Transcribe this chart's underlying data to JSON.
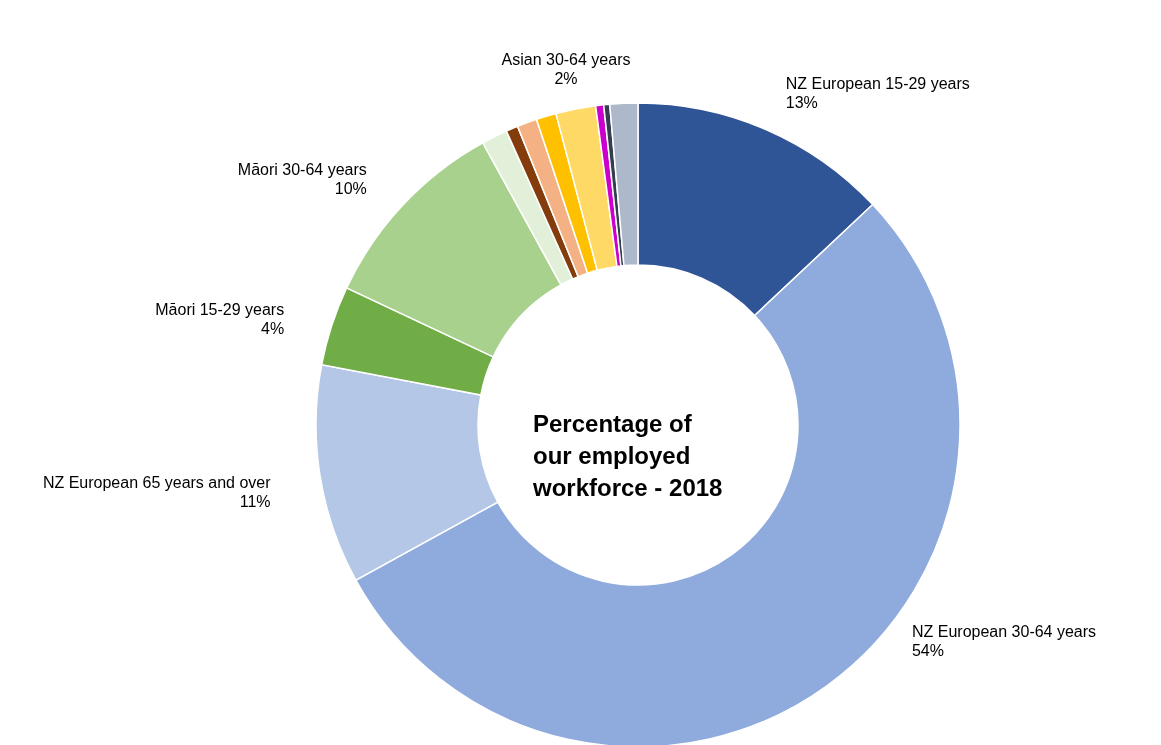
{
  "chart_data": {
    "type": "donut",
    "title": "Percentage of our employed workforce - 2018",
    "categories": [
      "NZ European  15-29 years",
      "NZ European  30-64 years",
      "NZ European  65 years and over",
      "Māori  15-29 years",
      "Māori  30-64 years",
      null,
      null,
      null,
      null,
      "Asian  30-64 years",
      null,
      null,
      null
    ],
    "values": [
      13,
      54,
      11,
      4,
      10,
      1.3,
      0.6,
      1.0,
      1.0,
      2,
      0.4,
      0.3,
      1.4
    ],
    "value_labels": [
      "13%",
      "54%",
      "11%",
      "4%",
      "10%",
      null,
      null,
      null,
      null,
      "2%",
      null,
      null,
      null
    ],
    "colors": [
      "#2f5597",
      "#8faadc",
      "#b4c7e7",
      "#70ad47",
      "#a9d18e",
      "#e2f0d9",
      "#843c0c",
      "#f4b183",
      "#ffc000",
      "#ffd966",
      "#cc00cc",
      "#333f50",
      "#adb9ca"
    ]
  }
}
